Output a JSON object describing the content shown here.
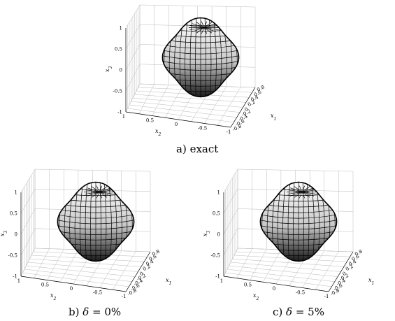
{
  "figure": {
    "panels": [
      {
        "id": "a",
        "caption": "a) exact",
        "axes": {
          "x3_label": "x3",
          "x2_label": "x2",
          "x1_label": "x1",
          "x3_ticks": [
            "1",
            "0.5",
            "0",
            "-0.5",
            "-1"
          ],
          "x2_ticks": [
            "1",
            "0.5",
            "0",
            "-0.5",
            "-1"
          ],
          "x1_ticks": [
            "-0.8",
            "-0.6",
            "-0.4",
            "-0.2",
            "0",
            "0.2",
            "0.4",
            "0.6",
            "0.8"
          ]
        }
      },
      {
        "id": "b",
        "caption_prefix": "b) ",
        "caption_symbol": "δ",
        "caption_suffix": " = 0%",
        "axes": {
          "x3_label": "x3",
          "x2_label": "x2",
          "x1_label": "x1",
          "x3_ticks": [
            "1",
            "0.5",
            "0",
            "-0.5",
            "-1"
          ],
          "x2_ticks": [
            "1",
            "0.5",
            "0",
            "-0.5",
            "-1"
          ],
          "x1_ticks": [
            "-0.8",
            "-0.6",
            "-0.4",
            "-0.2",
            "0",
            "0.2",
            "0.4",
            "0.6",
            "0.8"
          ]
        }
      },
      {
        "id": "c",
        "caption_prefix": "c) ",
        "caption_symbol": "δ",
        "caption_suffix": " = 5%",
        "axes": {
          "x3_label": "x3",
          "x2_label": "x2",
          "x1_label": "x1",
          "x3_ticks": [
            "1",
            "0.5",
            "0",
            "-0.5",
            "-1"
          ],
          "x2_ticks": [
            "1",
            "0.5",
            "0",
            "-0.5",
            "-1"
          ],
          "x1_ticks": [
            "-0.8",
            "-0.6",
            "-0.4",
            "-0.2",
            "0",
            "0.2",
            "0.4",
            "0.6",
            "0.8"
          ]
        }
      }
    ],
    "colors": {
      "surface_light": "#ffffff",
      "surface_dark": "#1a1a1a",
      "grid": "#bbbbbb",
      "mesh": "#000000"
    }
  }
}
